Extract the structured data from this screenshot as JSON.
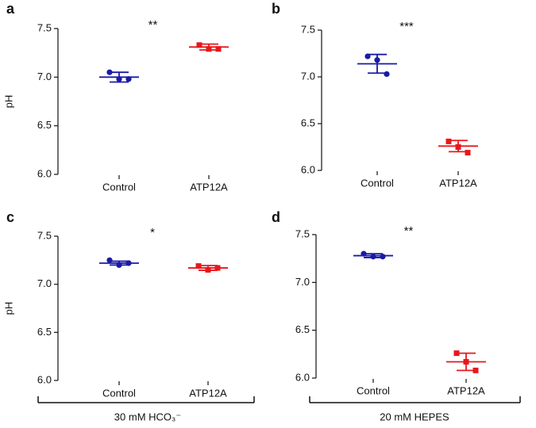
{
  "chart_data": [
    {
      "type": "strip",
      "panel": "a",
      "ylabel": "pH",
      "annotation": "**",
      "categories": [
        "Control",
        "ATP12A"
      ],
      "colors": [
        "#1a1aa6",
        "#e8171b"
      ],
      "points": [
        [
          7.05,
          6.98,
          6.98
        ],
        [
          7.33,
          7.29,
          7.29
        ]
      ],
      "means": [
        7.0,
        7.31
      ],
      "errors": [
        0.05,
        0.03
      ],
      "ylim": [
        6.0,
        7.5
      ],
      "yticks": [
        {
          "value": 6.0,
          "label": "6.0"
        },
        {
          "value": 6.5,
          "label": "6.5"
        },
        {
          "value": 7.0,
          "label": "7.0"
        },
        {
          "value": 7.5,
          "label": "7.5"
        }
      ]
    },
    {
      "type": "strip",
      "panel": "b",
      "annotation": "***",
      "categories": [
        "Control",
        "ATP12A"
      ],
      "colors": [
        "#1a1aa6",
        "#e8171b"
      ],
      "points": [
        [
          7.22,
          7.18,
          7.03
        ],
        [
          6.31,
          6.25,
          6.19
        ]
      ],
      "means": [
        7.14,
        6.26
      ],
      "errors": [
        0.1,
        0.06
      ],
      "ylim": [
        6.0,
        7.5
      ],
      "yticks": [
        {
          "value": 6.0,
          "label": "6.0"
        },
        {
          "value": 6.5,
          "label": "6.5"
        },
        {
          "value": 7.0,
          "label": "7.0"
        },
        {
          "value": 7.5,
          "label": "7.5"
        }
      ]
    },
    {
      "type": "strip",
      "panel": "c",
      "ylabel": "pH",
      "annotation": "*",
      "categories": [
        "Control",
        "ATP12A"
      ],
      "colors": [
        "#1a1aa6",
        "#e8171b"
      ],
      "points": [
        [
          7.25,
          7.2,
          7.22
        ],
        [
          7.19,
          7.15,
          7.17
        ]
      ],
      "means": [
        7.22,
        7.17
      ],
      "errors": [
        0.02,
        0.025
      ],
      "ylim": [
        6.0,
        7.5
      ],
      "yticks": [
        {
          "value": 6.0,
          "label": "6.0"
        },
        {
          "value": 6.5,
          "label": "6.5"
        },
        {
          "value": 7.0,
          "label": "7.0"
        },
        {
          "value": 7.5,
          "label": "7.5"
        }
      ]
    },
    {
      "type": "strip",
      "panel": "d",
      "annotation": "**",
      "categories": [
        "Control",
        "ATP12A"
      ],
      "colors": [
        "#1a1aa6",
        "#e8171b"
      ],
      "points": [
        [
          7.3,
          7.27,
          7.27
        ],
        [
          6.26,
          6.17,
          6.08
        ]
      ],
      "means": [
        7.28,
        6.17
      ],
      "errors": [
        0.02,
        0.09
      ],
      "ylim": [
        6.0,
        7.5
      ],
      "yticks": [
        {
          "value": 6.0,
          "label": "6.0"
        },
        {
          "value": 6.5,
          "label": "6.5"
        },
        {
          "value": 7.0,
          "label": "7.0"
        },
        {
          "value": 7.5,
          "label": "7.5"
        }
      ]
    }
  ],
  "groups": [
    {
      "label": "30 mM HCO₃⁻"
    },
    {
      "label": "20 mM HEPES"
    }
  ]
}
